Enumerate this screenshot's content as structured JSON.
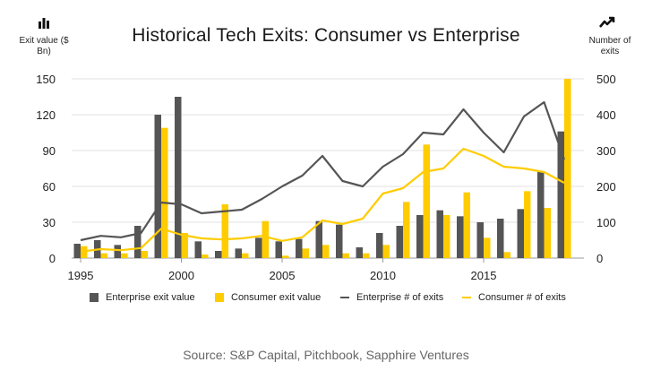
{
  "chart_data": {
    "type": "bar",
    "title": "Historical Tech Exits: Consumer vs Enterprise",
    "ylabel_left": "Exit value ($ Bn)",
    "ylabel_right": "Number of exits",
    "ylim_left": [
      0,
      150
    ],
    "ylim_right": [
      0,
      500
    ],
    "yticks_left": [
      "0",
      "30",
      "60",
      "90",
      "120",
      "150"
    ],
    "yticks_right": [
      "0",
      "100",
      "200",
      "300",
      "400",
      "500"
    ],
    "xticks": [
      "1995",
      "2000",
      "2005",
      "2010",
      "2015"
    ],
    "grid": "horizontal",
    "legend_position": "bottom",
    "years": [
      1995,
      1996,
      1997,
      1998,
      1999,
      2000,
      2001,
      2002,
      2003,
      2004,
      2005,
      2006,
      2007,
      2008,
      2009,
      2010,
      2011,
      2012,
      2013,
      2014,
      2015,
      2016,
      2017,
      2018,
      2019
    ],
    "series": [
      {
        "name": "Enterprise exit value",
        "kind": "bar",
        "axis": "left",
        "color": "#555555",
        "values": [
          12,
          15,
          11,
          27,
          120,
          135,
          14,
          6,
          8,
          17,
          14,
          16,
          31,
          28,
          9,
          21,
          27,
          36,
          40,
          35,
          30,
          33,
          41,
          72,
          106
        ]
      },
      {
        "name": "Consumer exit value",
        "kind": "bar",
        "axis": "left",
        "color": "#FFCC00",
        "values": [
          10,
          4,
          4,
          6,
          109,
          21,
          3,
          45,
          4,
          31,
          2,
          8,
          11,
          4,
          4,
          11,
          47,
          95,
          36,
          55,
          17,
          5,
          56,
          42,
          150
        ]
      },
      {
        "name": "Enterprise # of exits",
        "kind": "line",
        "axis": "right",
        "color": "#555555",
        "values": [
          50,
          62,
          58,
          70,
          155,
          150,
          125,
          130,
          135,
          165,
          200,
          230,
          285,
          215,
          200,
          255,
          290,
          350,
          345,
          415,
          350,
          295,
          395,
          435,
          275
        ]
      },
      {
        "name": "Consumer # of exits",
        "kind": "line",
        "axis": "right",
        "color": "#FFCC00",
        "values": [
          18,
          25,
          22,
          28,
          82,
          65,
          55,
          52,
          55,
          62,
          48,
          58,
          105,
          95,
          110,
          180,
          195,
          240,
          250,
          305,
          285,
          255,
          250,
          240,
          210
        ]
      }
    ]
  },
  "source": "Source: S&P Capital, Pitchbook, Sapphire Ventures",
  "icons": {
    "left": "bar-chart-icon",
    "right": "trend-line-icon"
  }
}
